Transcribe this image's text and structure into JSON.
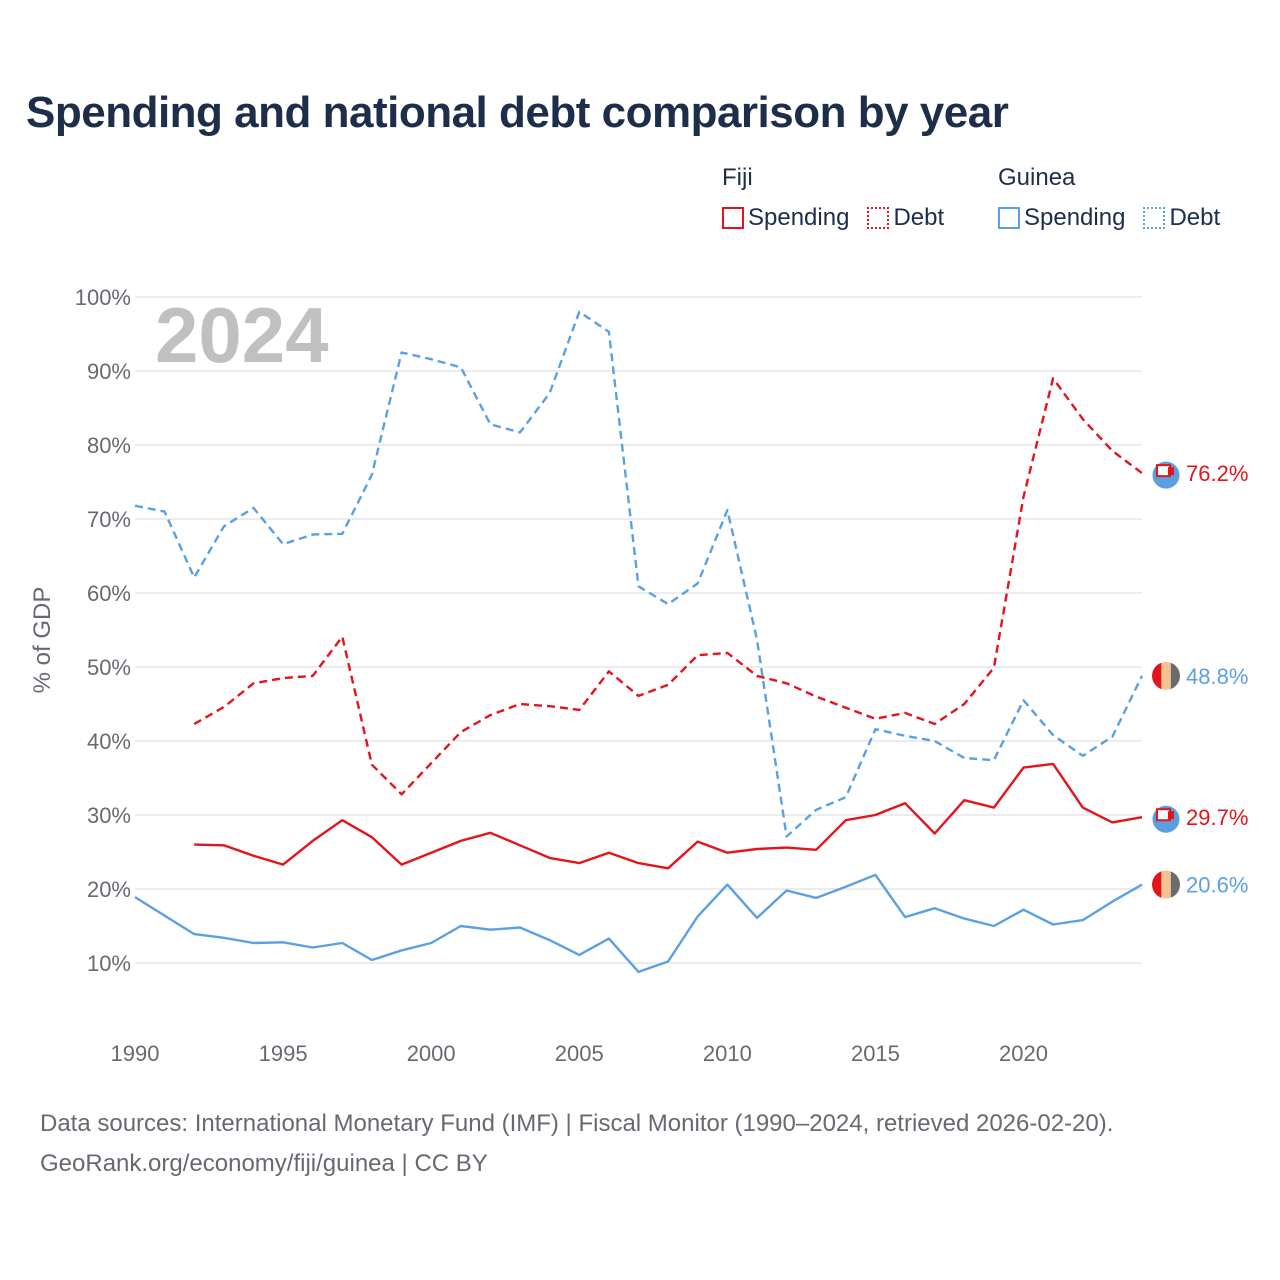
{
  "title": "Spending and national debt comparison by year",
  "legend": {
    "groups": [
      {
        "country": "Fiji",
        "items": [
          {
            "label": "Spending",
            "style": "solid",
            "color": "#e3141c"
          },
          {
            "label": "Debt",
            "style": "dotted",
            "color": "#e3141c"
          }
        ]
      },
      {
        "country": "Guinea",
        "items": [
          {
            "label": "Spending",
            "style": "solid",
            "color": "#5aa0e2"
          },
          {
            "label": "Debt",
            "style": "dotted",
            "color": "#5aa0e2"
          }
        ]
      }
    ]
  },
  "source": {
    "line1": "Data sources: International Monetary Fund (IMF) | Fiscal Monitor (1990–2024, retrieved 2026-02-20).",
    "line2": "GeoRank.org/economy/fiji/guinea | CC BY"
  },
  "chart_data": {
    "type": "line",
    "title": "Spending and national debt comparison by year",
    "watermark_year": "2024",
    "xlabel": "",
    "ylabel": "% of GDP",
    "xlim": [
      1990,
      2024
    ],
    "ylim": [
      3,
      103
    ],
    "x_ticks": [
      1990,
      1995,
      2000,
      2005,
      2010,
      2015,
      2020
    ],
    "y_ticks": [
      10,
      20,
      30,
      40,
      50,
      60,
      70,
      80,
      90,
      100
    ],
    "y_tick_labels": [
      "10%",
      "20%",
      "30%",
      "40%",
      "50%",
      "60%",
      "70%",
      "80%",
      "90%",
      "100%"
    ],
    "grid": true,
    "series": [
      {
        "name": "Fiji Debt",
        "country": "Fiji",
        "metric": "Debt",
        "color": "#e3141c",
        "dash": true,
        "end_label": "76.2%",
        "x": [
          1992,
          1993,
          1994,
          1995,
          1996,
          1997,
          1998,
          1999,
          2000,
          2001,
          2002,
          2003,
          2004,
          2005,
          2006,
          2007,
          2008,
          2009,
          2010,
          2011,
          2012,
          2013,
          2014,
          2015,
          2016,
          2017,
          2018,
          2019,
          2020,
          2021,
          2022,
          2023,
          2024
        ],
        "values": [
          42.3,
          44.6,
          47.8,
          48.5,
          48.8,
          54.1,
          36.8,
          32.8,
          37.0,
          41.2,
          43.5,
          45.0,
          44.7,
          44.2,
          49.4,
          46.1,
          47.6,
          51.6,
          51.9,
          48.8,
          47.8,
          46.0,
          44.5,
          43.0,
          43.8,
          42.3,
          45.0,
          49.9,
          73.0,
          89.0,
          83.5,
          79.2,
          76.2
        ]
      },
      {
        "name": "Fiji Spending",
        "country": "Fiji",
        "metric": "Spending",
        "color": "#e3141c",
        "dash": false,
        "end_label": "29.7%",
        "x": [
          1992,
          1993,
          1994,
          1995,
          1996,
          1997,
          1998,
          1999,
          2000,
          2001,
          2002,
          2003,
          2004,
          2005,
          2006,
          2007,
          2008,
          2009,
          2010,
          2011,
          2012,
          2013,
          2014,
          2015,
          2016,
          2017,
          2018,
          2019,
          2020,
          2021,
          2022,
          2023,
          2024
        ],
        "values": [
          26.0,
          25.9,
          24.5,
          23.3,
          26.5,
          29.3,
          27.0,
          23.3,
          24.9,
          26.5,
          27.6,
          25.9,
          24.2,
          23.5,
          24.9,
          23.5,
          22.8,
          26.4,
          24.9,
          25.4,
          25.6,
          25.3,
          29.3,
          30.0,
          31.6,
          27.5,
          32.0,
          31.0,
          36.4,
          36.9,
          31.0,
          29.0,
          29.7
        ]
      },
      {
        "name": "Guinea Debt",
        "country": "Guinea",
        "metric": "Debt",
        "color": "#5aa0e2",
        "dash": true,
        "end_label": "48.8%",
        "x": [
          1990,
          1991,
          1992,
          1993,
          1994,
          1995,
          1996,
          1997,
          1998,
          1999,
          2000,
          2001,
          2002,
          2003,
          2004,
          2005,
          2006,
          2007,
          2008,
          2009,
          2010,
          2011,
          2012,
          2013,
          2014,
          2015,
          2016,
          2017,
          2018,
          2019,
          2020,
          2021,
          2022,
          2023,
          2024
        ],
        "values": [
          71.8,
          71.0,
          62.1,
          69.0,
          71.5,
          66.6,
          67.9,
          68.0,
          76.0,
          92.5,
          91.6,
          90.5,
          82.8,
          81.7,
          87.0,
          98.0,
          95.3,
          60.9,
          58.5,
          61.3,
          71.2,
          53.7,
          27.1,
          30.7,
          32.4,
          41.6,
          40.7,
          40.0,
          37.7,
          37.4,
          45.5,
          40.8,
          38.0,
          40.6,
          48.8
        ]
      },
      {
        "name": "Guinea Spending",
        "country": "Guinea",
        "metric": "Spending",
        "color": "#5aa0e2",
        "dash": false,
        "end_label": "20.6%",
        "x": [
          1990,
          1991,
          1992,
          1993,
          1994,
          1995,
          1996,
          1997,
          1998,
          1999,
          2000,
          2001,
          2002,
          2003,
          2004,
          2005,
          2006,
          2007,
          2008,
          2009,
          2010,
          2011,
          2012,
          2013,
          2014,
          2015,
          2016,
          2017,
          2018,
          2019,
          2020,
          2021,
          2022,
          2023,
          2024
        ],
        "values": [
          18.9,
          16.4,
          13.9,
          13.4,
          12.7,
          12.8,
          12.1,
          12.7,
          10.4,
          11.7,
          12.7,
          15.0,
          14.5,
          14.8,
          13.1,
          11.1,
          13.3,
          8.8,
          10.2,
          16.3,
          20.6,
          16.1,
          19.8,
          18.8,
          20.3,
          21.9,
          16.2,
          17.4,
          16.0,
          15.0,
          17.2,
          15.2,
          15.8,
          18.3,
          20.6
        ]
      }
    ]
  }
}
